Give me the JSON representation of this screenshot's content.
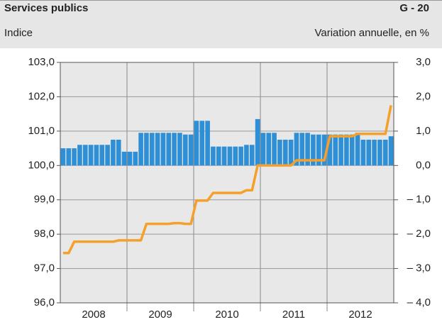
{
  "chart_data": {
    "type": "combo",
    "title": "Services publics",
    "code": "G - 20",
    "left_axis_label": "Indice",
    "right_axis_label": "Variation annuelle, en %",
    "year_labels": [
      "2008",
      "2009",
      "2010",
      "2011",
      "2012"
    ],
    "ylim": [
      96,
      103
    ],
    "yticks": [
      {
        "value": 96,
        "label": "96,0"
      },
      {
        "value": 97,
        "label": "97,0"
      },
      {
        "value": 98,
        "label": "98,0"
      },
      {
        "value": 99,
        "label": "99,0"
      },
      {
        "value": 100,
        "label": "100,0"
      },
      {
        "value": 101,
        "label": "101,0"
      },
      {
        "value": 102,
        "label": "102,0"
      },
      {
        "value": 103,
        "label": "103,0"
      }
    ],
    "y2lim": [
      -4,
      3
    ],
    "y2ticks": [
      {
        "value": -4,
        "label": "– 4,0"
      },
      {
        "value": -3,
        "label": "– 3,0"
      },
      {
        "value": -2,
        "label": "– 2,0"
      },
      {
        "value": -1,
        "label": "– 1,0"
      },
      {
        "value": 0,
        "label": "0,0"
      },
      {
        "value": 1,
        "label": "1,0"
      },
      {
        "value": 2,
        "label": "2,0"
      },
      {
        "value": 3,
        "label": "3,0"
      }
    ],
    "grid": true,
    "series": [
      {
        "type": "bar",
        "axis": "y2",
        "color": "#2e8fd6",
        "values": [
          0.5,
          0.5,
          0.5,
          0.6,
          0.6,
          0.6,
          0.6,
          0.6,
          0.6,
          0.75,
          0.75,
          0.4,
          0.4,
          0.4,
          0.95,
          0.95,
          0.95,
          0.95,
          0.95,
          0.95,
          0.95,
          0.95,
          0.9,
          0.9,
          1.3,
          1.3,
          1.3,
          0.55,
          0.55,
          0.55,
          0.55,
          0.55,
          0.55,
          0.6,
          0.6,
          1.35,
          0.95,
          0.95,
          0.95,
          0.75,
          0.75,
          0.75,
          0.95,
          0.95,
          0.95,
          0.9,
          0.9,
          0.9,
          0.9,
          0.9,
          0.9,
          0.9,
          0.9,
          0.95,
          0.75,
          0.75,
          0.75,
          0.75,
          0.75,
          0.85
        ]
      },
      {
        "type": "line",
        "axis": "y",
        "color": "#f5a02a",
        "values": [
          97.45,
          97.45,
          97.78,
          97.78,
          97.78,
          97.78,
          97.78,
          97.78,
          97.78,
          97.78,
          97.82,
          97.82,
          97.82,
          97.82,
          97.82,
          98.3,
          98.3,
          98.3,
          98.3,
          98.3,
          98.32,
          98.32,
          98.3,
          98.3,
          98.98,
          98.98,
          98.98,
          99.2,
          99.2,
          99.2,
          99.2,
          99.2,
          99.2,
          99.28,
          99.28,
          100.0,
          100.0,
          100.0,
          100.0,
          100.0,
          100.0,
          100.0,
          100.15,
          100.15,
          100.15,
          100.15,
          100.15,
          100.15,
          100.85,
          100.85,
          100.85,
          100.85,
          100.85,
          100.92,
          100.92,
          100.92,
          100.92,
          100.92,
          100.92,
          101.75
        ]
      }
    ]
  }
}
